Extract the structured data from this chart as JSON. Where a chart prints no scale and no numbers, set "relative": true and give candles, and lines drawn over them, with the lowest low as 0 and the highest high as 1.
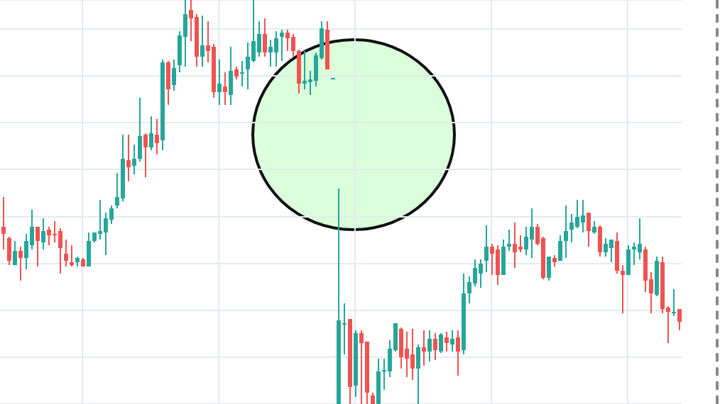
{
  "chart_data": {
    "type": "candlestick",
    "relative": true,
    "grid": true,
    "categories": [
      null,
      null,
      null,
      null,
      null,
      null,
      null,
      null,
      null,
      null,
      null,
      null,
      null,
      null,
      null,
      null,
      null,
      null,
      null,
      null,
      null,
      null,
      null,
      null,
      null,
      null,
      null,
      null,
      null,
      null,
      null,
      null,
      null,
      null,
      null,
      null,
      null,
      null,
      null,
      null,
      null,
      null,
      null,
      null,
      null,
      null,
      null,
      null,
      null,
      null,
      null,
      null,
      null,
      null,
      null,
      null,
      null,
      null,
      null,
      null,
      null,
      null,
      null,
      null,
      null,
      null,
      null,
      null,
      null,
      null,
      null,
      null,
      null,
      null,
      null,
      null,
      null,
      null,
      null,
      null,
      null,
      null,
      null,
      null,
      null,
      null,
      null,
      null,
      null,
      null,
      null,
      null,
      null,
      null,
      null,
      null,
      null,
      null,
      null,
      null,
      null,
      null,
      null,
      null,
      null,
      null,
      null,
      null,
      null,
      null,
      null,
      null,
      null,
      null,
      null,
      null,
      null,
      null,
      null,
      null
    ],
    "ohlc": [
      [
        0.439,
        0.512,
        0.382,
        0.421
      ],
      [
        0.411,
        0.414,
        0.344,
        0.354
      ],
      [
        0.344,
        0.404,
        0.344,
        0.379
      ],
      [
        0.379,
        0.389,
        0.305,
        0.361
      ],
      [
        0.361,
        0.421,
        0.333,
        0.404
      ],
      [
        0.393,
        0.481,
        0.382,
        0.439
      ],
      [
        0.439,
        0.439,
        0.34,
        0.404
      ],
      [
        0.4,
        0.46,
        0.382,
        0.428
      ],
      [
        0.432,
        0.439,
        0.393,
        0.418
      ],
      [
        0.421,
        0.453,
        0.4,
        0.418
      ],
      [
        0.428,
        0.435,
        0.323,
        0.386
      ],
      [
        0.372,
        0.407,
        0.34,
        0.354
      ],
      [
        0.351,
        0.393,
        0.34,
        0.344
      ],
      [
        0.351,
        0.365,
        0.34,
        0.361
      ],
      [
        0.358,
        0.361,
        0.34,
        0.34
      ],
      [
        0.34,
        0.425,
        0.34,
        0.404
      ],
      [
        0.404,
        0.425,
        0.4,
        0.425
      ],
      [
        0.421,
        0.505,
        0.407,
        0.428
      ],
      [
        0.425,
        0.474,
        0.368,
        0.46
      ],
      [
        0.456,
        0.491,
        0.446,
        0.484
      ],
      [
        0.491,
        0.572,
        0.484,
        0.512
      ],
      [
        0.509,
        0.667,
        0.502,
        0.607
      ],
      [
        0.604,
        0.667,
        0.551,
        0.586
      ],
      [
        0.589,
        0.642,
        0.568,
        0.607
      ],
      [
        0.607,
        0.758,
        0.6,
        0.663
      ],
      [
        0.667,
        0.67,
        0.561,
        0.635
      ],
      [
        0.635,
        0.712,
        0.628,
        0.67
      ],
      [
        0.667,
        0.705,
        0.618,
        0.646
      ],
      [
        0.653,
        0.853,
        0.628,
        0.846
      ],
      [
        0.846,
        0.849,
        0.74,
        0.779
      ],
      [
        0.789,
        0.853,
        0.775,
        0.832
      ],
      [
        0.839,
        0.923,
        0.821,
        0.912
      ],
      [
        0.909,
        1,
        0.835,
        0.965
      ],
      [
        0.975,
        1,
        0.898,
        0.954
      ],
      [
        0.958,
        0.965,
        0.835,
        0.86
      ],
      [
        0.86,
        0.961,
        0.835,
        0.888
      ],
      [
        0.888,
        0.947,
        0.846,
        0.874
      ],
      [
        0.884,
        0.891,
        0.758,
        0.772
      ],
      [
        0.772,
        0.853,
        0.74,
        0.793
      ],
      [
        0.786,
        0.821,
        0.74,
        0.772
      ],
      [
        0.765,
        0.884,
        0.74,
        0.825
      ],
      [
        0.828,
        0.835,
        0.804,
        0.811
      ],
      [
        0.818,
        0.849,
        0.786,
        0.821
      ],
      [
        0.828,
        0.895,
        0.779,
        0.86
      ],
      [
        0.849,
        1,
        0.846,
        0.898
      ],
      [
        0.87,
        0.947,
        0.86,
        0.916
      ],
      [
        0.916,
        0.954,
        0.86,
        0.87
      ],
      [
        0.87,
        0.902,
        0.835,
        0.884
      ],
      [
        0.87,
        0.923,
        0.835,
        0.905
      ],
      [
        0.909,
        0.926,
        0.849,
        0.919
      ],
      [
        0.919,
        0.926,
        0.874,
        0.905
      ],
      [
        0.909,
        0.916,
        0.86,
        0.874
      ],
      [
        0.874,
        0.877,
        0.768,
        0.793
      ],
      [
        0.793,
        0.874,
        0.779,
        0.8
      ],
      [
        0.796,
        0.825,
        0.765,
        0.804
      ],
      [
        0.8,
        0.87,
        0.786,
        0.863
      ],
      [
        0.856,
        0.947,
        0.853,
        0.93
      ],
      [
        0.926,
        0.947,
        0.828,
        0.828
      ],
      [
        0.807,
        0.807,
        0.807,
        0.807
      ],
      [
        0,
        0.533,
        0,
        0.207
      ],
      [
        0.196,
        0.249,
        0.123,
        0.2
      ],
      [
        0.211,
        0.211,
        0,
        0.042
      ],
      [
        0.046,
        0.182,
        0.018,
        0.175
      ],
      [
        0.175,
        0.182,
        0,
        0.151
      ],
      [
        0.154,
        0.154,
        0,
        0.028
      ],
      [
        0.021,
        0.028,
        0,
        0
      ],
      [
        0,
        0.112,
        0,
        0.081
      ],
      [
        0.081,
        0.112,
        0.035,
        0.084
      ],
      [
        0.081,
        0.158,
        0.067,
        0.137
      ],
      [
        0.133,
        0.2,
        0.13,
        0.2
      ],
      [
        0.186,
        0.189,
        0.088,
        0.116
      ],
      [
        0.137,
        0.179,
        0.067,
        0.112
      ],
      [
        0.123,
        0.186,
        0.06,
        0.088
      ],
      [
        0.088,
        0.147,
        0,
        0.14
      ],
      [
        0.14,
        0.182,
        0.095,
        0.13
      ],
      [
        0.13,
        0.182,
        0.105,
        0.161
      ],
      [
        0.161,
        0.175,
        0.109,
        0.133
      ],
      [
        0.13,
        0.175,
        0.126,
        0.172
      ],
      [
        0.165,
        0.179,
        0.13,
        0.151
      ],
      [
        0.147,
        0.182,
        0.13,
        0.161
      ],
      [
        0.165,
        0.182,
        0.07,
        0.13
      ],
      [
        0.133,
        0.323,
        0.123,
        0.274
      ],
      [
        0.274,
        0.316,
        0.249,
        0.302
      ],
      [
        0.298,
        0.358,
        0.291,
        0.337
      ],
      [
        0.323,
        0.358,
        0.288,
        0.347
      ],
      [
        0.354,
        0.442,
        0.326,
        0.389
      ],
      [
        0.389,
        0.396,
        0.319,
        0.372
      ],
      [
        0.382,
        0.393,
        0.295,
        0.319
      ],
      [
        0.319,
        0.407,
        0.319,
        0.389
      ],
      [
        0.389,
        0.432,
        0.379,
        0.396
      ],
      [
        0.396,
        0.449,
        0.337,
        0.375
      ],
      [
        0.389,
        0.418,
        0.375,
        0.382
      ],
      [
        0.382,
        0.439,
        0.368,
        0.414
      ],
      [
        0.407,
        0.484,
        0.361,
        0.439
      ],
      [
        0.439,
        0.446,
        0.393,
        0.396
      ],
      [
        0.411,
        0.414,
        0.309,
        0.312
      ],
      [
        0.312,
        0.365,
        0.305,
        0.365
      ],
      [
        0.361,
        0.368,
        0.34,
        0.351
      ],
      [
        0.354,
        0.418,
        0.354,
        0.404
      ],
      [
        0.404,
        0.491,
        0.361,
        0.428
      ],
      [
        0.432,
        0.47,
        0.4,
        0.449
      ],
      [
        0.439,
        0.505,
        0.435,
        0.463
      ],
      [
        0.449,
        0.505,
        0.425,
        0.467
      ],
      [
        0.474,
        0.474,
        0.389,
        0.428
      ],
      [
        0.425,
        0.453,
        0.421,
        0.439
      ],
      [
        0.439,
        0.442,
        0.365,
        0.375
      ],
      [
        0.375,
        0.411,
        0.365,
        0.396
      ],
      [
        0.386,
        0.407,
        0.351,
        0.407
      ],
      [
        0.404,
        0.425,
        0.323,
        0.33
      ],
      [
        0.33,
        0.344,
        0.225,
        0.319
      ],
      [
        0.319,
        0.393,
        0.319,
        0.382
      ],
      [
        0.382,
        0.4,
        0.344,
        0.389
      ],
      [
        0.375,
        0.46,
        0.358,
        0.396
      ],
      [
        0.382,
        0.389,
        0.277,
        0.305
      ],
      [
        0.309,
        0.326,
        0.225,
        0.274
      ],
      [
        0.27,
        0.365,
        0.267,
        0.354
      ],
      [
        0.351,
        0.365,
        0.225,
        0.235
      ],
      [
        0.239,
        0.242,
        0.151,
        0.228
      ],
      [
        0.225,
        0.284,
        0.218,
        0.228
      ],
      [
        0.235,
        0.235,
        0.182,
        0.204
      ]
    ],
    "colors": [
      "#ef5350",
      "#ef5350",
      "#26a69a",
      "#ef5350",
      "#26a69a",
      "#26a69a",
      "#ef5350",
      "#26a69a",
      "#ef5350",
      "#ef5350",
      "#ef5350",
      "#ef5350",
      "#ef5350",
      "#26a69a",
      "#ef5350",
      "#26a69a",
      "#26a69a",
      "#26a69a",
      "#26a69a",
      "#26a69a",
      "#26a69a",
      "#26a69a",
      "#ef5350",
      "#26a69a",
      "#26a69a",
      "#ef5350",
      "#26a69a",
      "#ef5350",
      "#26a69a",
      "#ef5350",
      "#26a69a",
      "#26a69a",
      "#26a69a",
      "#ef5350",
      "#ef5350",
      "#26a69a",
      "#ef5350",
      "#ef5350",
      "#26a69a",
      "#ef5350",
      "#26a69a",
      "#ef5350",
      "#26a69a",
      "#26a69a",
      "#26a69a",
      "#26a69a",
      "#ef5350",
      "#26a69a",
      "#26a69a",
      "#26a69a",
      "#ef5350",
      "#ef5350",
      "#ef5350",
      "#26a69a",
      "#26a69a",
      "#26a69a",
      "#26a69a",
      "#ef5350",
      "#26a69a",
      "#26a69a",
      "#26a69a",
      "#ef5350",
      "#26a69a",
      "#ef5350",
      "#ef5350",
      "#ef5350",
      "#26a69a",
      "#26a69a",
      "#26a69a",
      "#26a69a",
      "#ef5350",
      "#ef5350",
      "#ef5350",
      "#26a69a",
      "#ef5350",
      "#26a69a",
      "#ef5350",
      "#26a69a",
      "#ef5350",
      "#26a69a",
      "#ef5350",
      "#26a69a",
      "#26a69a",
      "#26a69a",
      "#26a69a",
      "#26a69a",
      "#ef5350",
      "#ef5350",
      "#26a69a",
      "#26a69a",
      "#ef5350",
      "#ef5350",
      "#26a69a",
      "#26a69a",
      "#ef5350",
      "#ef5350",
      "#26a69a",
      "#ef5350",
      "#26a69a",
      "#26a69a",
      "#26a69a",
      "#26a69a",
      "#26a69a",
      "#ef5350",
      "#26a69a",
      "#ef5350",
      "#26a69a",
      "#26a69a",
      "#ef5350",
      "#ef5350",
      "#26a69a",
      "#26a69a",
      "#26a69a",
      "#ef5350",
      "#ef5350",
      "#26a69a",
      "#ef5350",
      "#ef5350",
      "#26a69a",
      "#ef5350"
    ]
  }
}
